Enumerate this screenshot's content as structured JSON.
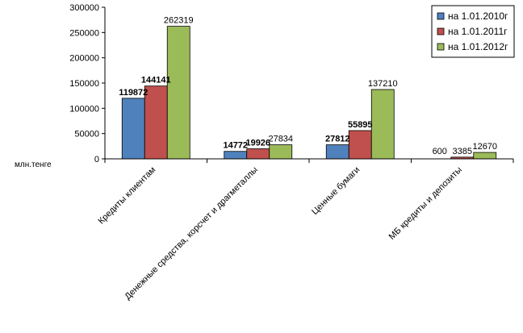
{
  "chart_data": {
    "type": "bar",
    "ylabel": "млн.тенге",
    "ylim": [
      0,
      300000
    ],
    "yticks": [
      0,
      50000,
      100000,
      150000,
      200000,
      250000,
      300000
    ],
    "grid": false,
    "legend_position": "top-right",
    "categories": [
      "Кредиты клиентам",
      "Денежные средства, корсчет и драгметаллы",
      "Ценные бумаги",
      "МБ кредиты и депозиты"
    ],
    "series": [
      {
        "name": "на 1.01.2010г",
        "color": "#4f81bd",
        "values": [
          119872,
          14772,
          27812,
          0
        ],
        "labels": [
          "119872",
          "14772",
          "27812",
          ""
        ],
        "bold_labels": true
      },
      {
        "name": "на 1.01.2011г",
        "color": "#c0504d",
        "values": [
          144141,
          19926,
          55895,
          3385
        ],
        "labels": [
          "144141",
          "19926",
          "55895",
          "3385"
        ],
        "bold_labels": [
          true,
          true,
          true,
          false
        ]
      },
      {
        "name": "на 1.01.2012г",
        "color": "#9bbb59",
        "values": [
          262319,
          27834,
          137210,
          12670
        ],
        "labels": [
          "262319",
          "27834",
          "137210",
          "12670"
        ],
        "bold_labels": false
      }
    ],
    "extra_labels": [
      "600"
    ]
  }
}
